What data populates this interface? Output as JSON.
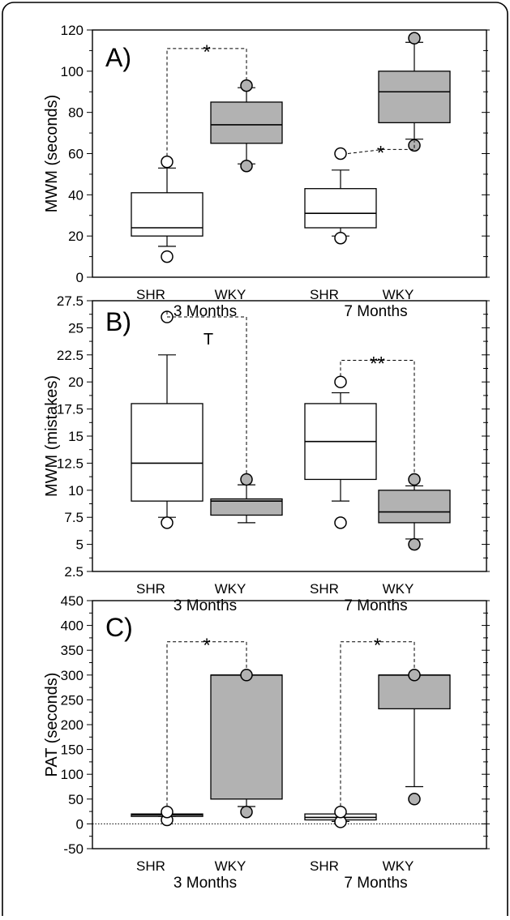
{
  "figure": {
    "border": "rounded"
  },
  "colors": {
    "shr_fill": "#ffffff",
    "wky_fill": "#b2b2b2",
    "stroke": "#000000"
  },
  "chart_data": [
    {
      "type": "box",
      "panel_label": "A)",
      "ylabel": "MWM (seconds)",
      "ylim": [
        0,
        120
      ],
      "yticks": [
        0,
        20,
        40,
        60,
        80,
        100,
        120
      ],
      "ytick_labels": [
        "0",
        "20",
        "40",
        "60",
        "80",
        "100",
        "120"
      ],
      "periods": [
        "3 Months",
        "7 Months"
      ],
      "groups": [
        "SHR",
        "WKY"
      ],
      "boxes": [
        {
          "period": "3 Months",
          "group": "SHR",
          "whisker_low": 15,
          "q1": 20,
          "median": 24,
          "q3": 41,
          "whisker_high": 53,
          "outliers": [
            10,
            56
          ]
        },
        {
          "period": "3 Months",
          "group": "WKY",
          "whisker_low": 55,
          "q1": 65,
          "median": 74,
          "q3": 85,
          "whisker_high": 92,
          "outliers": [
            54,
            93
          ]
        },
        {
          "period": "7 Months",
          "group": "SHR",
          "whisker_low": 20,
          "q1": 24,
          "median": 31,
          "q3": 43,
          "whisker_high": 52,
          "outliers": [
            19,
            60
          ]
        },
        {
          "period": "7 Months",
          "group": "WKY",
          "whisker_low": 67,
          "q1": 75,
          "median": 90,
          "q3": 100,
          "whisker_high": 114,
          "outliers": [
            64,
            116
          ]
        }
      ],
      "significance": [
        {
          "label": "*",
          "from": "3 Months SHR",
          "to": "3 Months WKY",
          "style": "bracket-top",
          "level": 111
        },
        {
          "label": "*",
          "from": "7 Months SHR",
          "to": "7 Months WKY",
          "style": "step",
          "level": 60,
          "level_to": 62
        }
      ],
      "grid": false
    },
    {
      "type": "box",
      "panel_label": "B)",
      "ylabel": "MWM (mistakes)",
      "ylim": [
        2.5,
        27.5
      ],
      "yticks": [
        2.5,
        5,
        7.5,
        10,
        12.5,
        15,
        17.5,
        20,
        22.5,
        25,
        27.5
      ],
      "ytick_labels": [
        "2.5",
        "5",
        "7.5",
        "10",
        "12.5",
        "15",
        "17.5",
        "20",
        "22.5",
        "25",
        "27.5"
      ],
      "periods": [
        "3 Months",
        "7 Months"
      ],
      "groups": [
        "SHR",
        "WKY"
      ],
      "boxes": [
        {
          "period": "3 Months",
          "group": "SHR",
          "whisker_low": 7.5,
          "q1": 9,
          "median": 12.5,
          "q3": 18,
          "whisker_high": 22.5,
          "outliers": [
            7,
            26
          ]
        },
        {
          "period": "3 Months",
          "group": "WKY",
          "whisker_low": 7,
          "q1": 7.7,
          "median": 9,
          "q3": 9.2,
          "whisker_high": 10.5,
          "outliers": [
            11
          ]
        },
        {
          "period": "7 Months",
          "group": "SHR",
          "whisker_low": 9,
          "q1": 11,
          "median": 14.5,
          "q3": 18,
          "whisker_high": 19,
          "outliers": [
            7,
            20
          ]
        },
        {
          "period": "7 Months",
          "group": "WKY",
          "whisker_low": 5.5,
          "q1": 7,
          "median": 8,
          "q3": 10,
          "whisker_high": 10.4,
          "outliers": [
            5,
            11
          ]
        }
      ],
      "significance": [
        {
          "label": "T",
          "from": "3 Months SHR",
          "to": "3 Months WKY",
          "style": "bracket-top",
          "level": 26
        },
        {
          "label": "**",
          "from": "7 Months SHR",
          "to": "7 Months WKY",
          "style": "bracket-top",
          "level": 22
        }
      ],
      "grid": false
    },
    {
      "type": "box",
      "panel_label": "C)",
      "ylabel": "PAT (seconds)",
      "ylim": [
        -50,
        450
      ],
      "yticks": [
        -50,
        0,
        50,
        100,
        150,
        200,
        250,
        300,
        350,
        400,
        450
      ],
      "ytick_labels": [
        "-50",
        "0",
        "50",
        "100",
        "150",
        "200",
        "250",
        "300",
        "350",
        "400",
        "450"
      ],
      "periods": [
        "3 Months",
        "7 Months"
      ],
      "groups": [
        "SHR",
        "WKY"
      ],
      "boxes": [
        {
          "period": "3 Months",
          "group": "SHR",
          "whisker_low": 15,
          "q1": 15,
          "median": 18,
          "q3": 20,
          "whisker_high": 20,
          "outliers": [
            8,
            24
          ]
        },
        {
          "period": "3 Months",
          "group": "WKY",
          "whisker_low": 35,
          "q1": 50,
          "median": 300,
          "q3": 300,
          "whisker_high": 300,
          "outliers": [
            24,
            300
          ]
        },
        {
          "period": "7 Months",
          "group": "SHR",
          "whisker_low": 5,
          "q1": 8,
          "median": 13,
          "q3": 20,
          "whisker_high": 20,
          "outliers": [
            4,
            24
          ]
        },
        {
          "period": "7 Months",
          "group": "WKY",
          "whisker_low": 75,
          "q1": 232,
          "median": 300,
          "q3": 300,
          "whisker_high": 300,
          "outliers": [
            50,
            300
          ]
        }
      ],
      "reference_line": 0,
      "significance": [
        {
          "label": "*",
          "from": "3 Months SHR",
          "to": "3 Months WKY",
          "style": "bracket-top",
          "level": 367
        },
        {
          "label": "*",
          "from": "7 Months SHR",
          "to": "7 Months WKY",
          "style": "bracket-top",
          "level": 367
        }
      ],
      "grid": false
    }
  ]
}
